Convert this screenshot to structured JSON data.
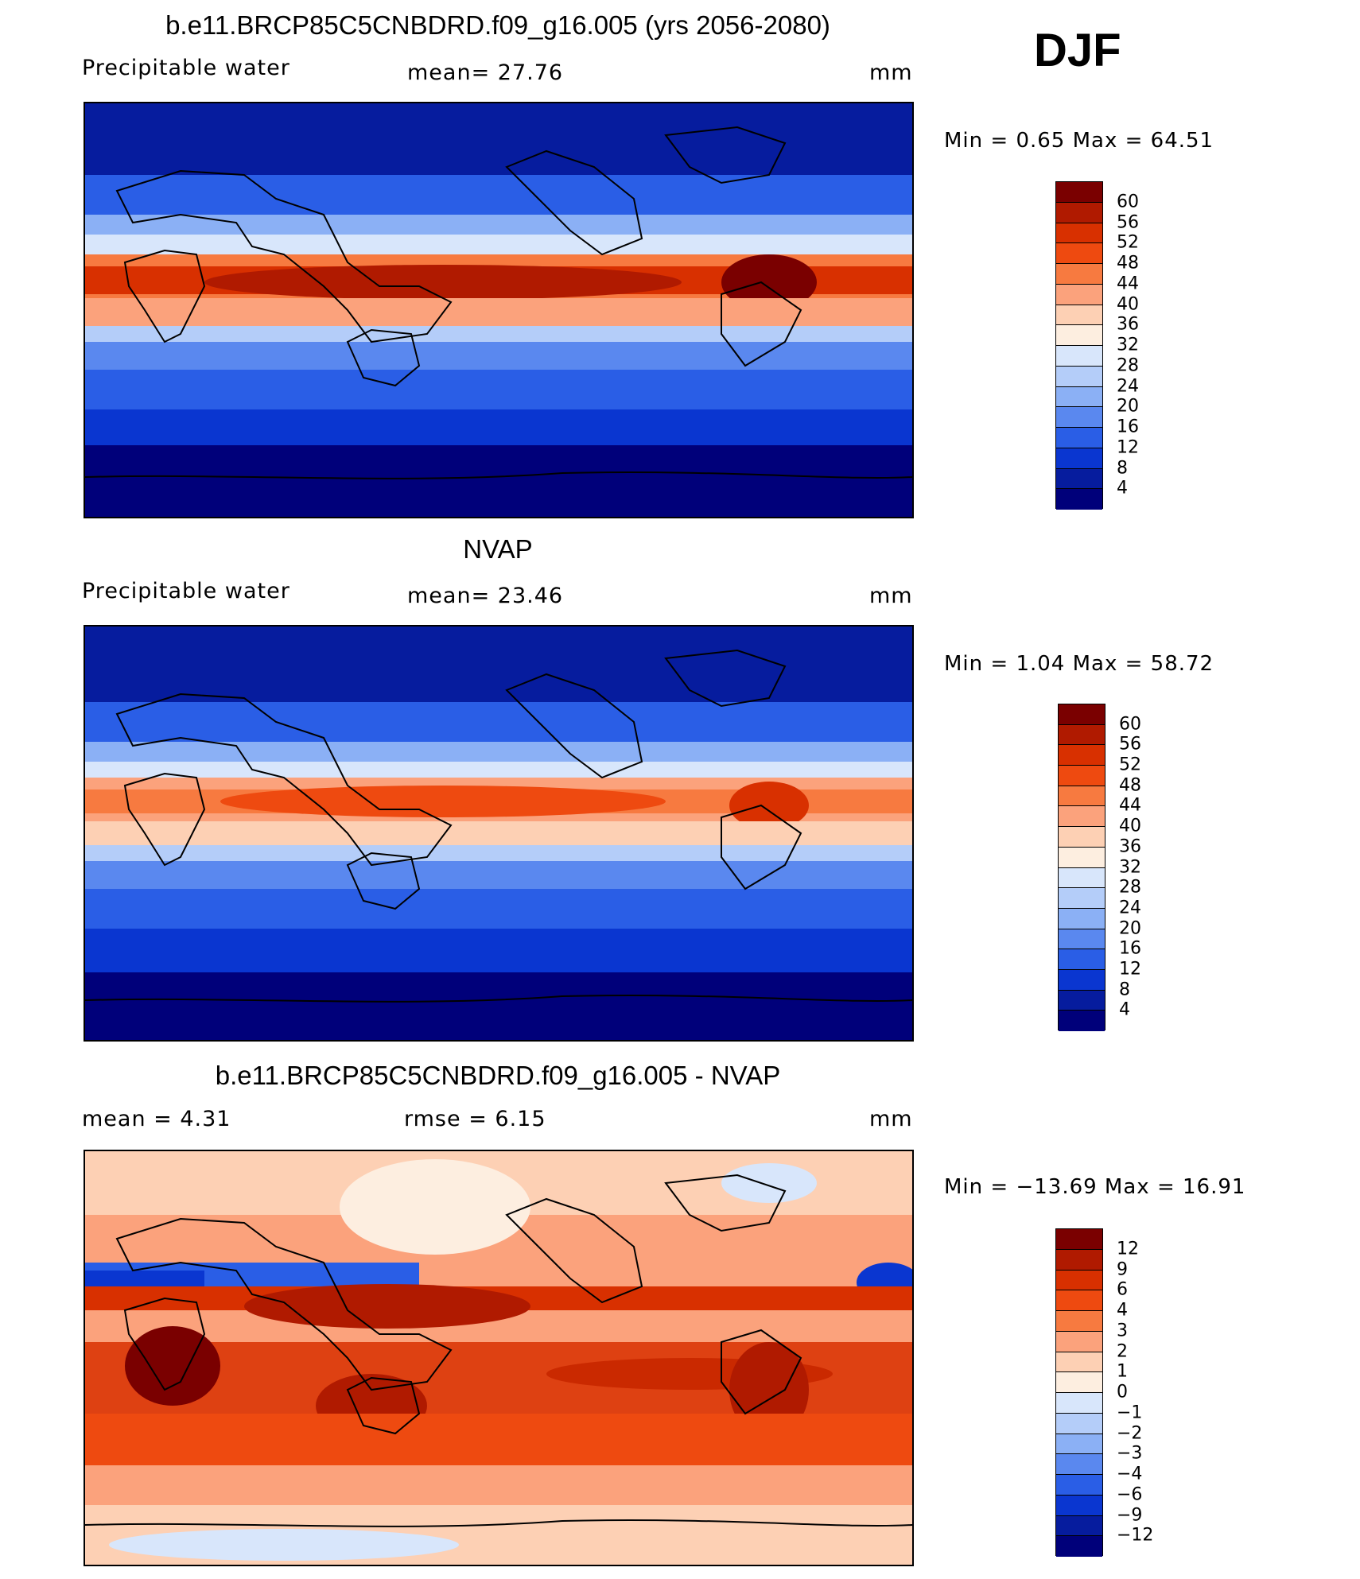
{
  "season": "DJF",
  "panels": [
    {
      "id": "model",
      "title": "b.e11.BRCP85C5CNBDRD.f09_g16.005 (yrs 2056-2080)",
      "left_label": "Precipitable  water",
      "center_label": "mean=   27.76",
      "units": "mm",
      "minmax": "Min  =     0.65  Max  =    64.51",
      "colorbar": {
        "labels": [
          "60",
          "56",
          "52",
          "48",
          "44",
          "40",
          "36",
          "32",
          "28",
          "24",
          "20",
          "16",
          "12",
          "8",
          "4"
        ],
        "colors": [
          "#7a0000",
          "#b01a00",
          "#d83000",
          "#ee4a10",
          "#f77a40",
          "#fba27c",
          "#fdd0b4",
          "#fdeee0",
          "#d8e6fb",
          "#b4cdf9",
          "#8bb0f5",
          "#5a88ef",
          "#2a5ee6",
          "#0a36d0",
          "#061c9e",
          "#00007a"
        ]
      }
    },
    {
      "id": "obs",
      "title": "NVAP",
      "left_label": "Precipitable  water",
      "center_label": "mean=   23.46",
      "units": "mm",
      "minmax": "Min  =     1.04  Max  =    58.72",
      "colorbar": {
        "labels": [
          "60",
          "56",
          "52",
          "48",
          "44",
          "40",
          "36",
          "32",
          "28",
          "24",
          "20",
          "16",
          "12",
          "8",
          "4"
        ],
        "colors": [
          "#7a0000",
          "#b01a00",
          "#d83000",
          "#ee4a10",
          "#f77a40",
          "#fba27c",
          "#fdd0b4",
          "#fdeee0",
          "#d8e6fb",
          "#b4cdf9",
          "#8bb0f5",
          "#5a88ef",
          "#2a5ee6",
          "#0a36d0",
          "#061c9e",
          "#00007a"
        ]
      }
    },
    {
      "id": "diff",
      "title": "b.e11.BRCP85C5CNBDRD.f09_g16.005 - NVAP",
      "left_label": "mean  =      4.31",
      "center_label": "rmse  =      6.15",
      "units": "mm",
      "minmax": "Min  = −13.69  Max  =    16.91",
      "colorbar": {
        "labels": [
          "12",
          "9",
          "6",
          "4",
          "3",
          "2",
          "1",
          "0",
          "−1",
          "−2",
          "−3",
          "−4",
          "−6",
          "−9",
          "−12"
        ],
        "colors": [
          "#7a0000",
          "#b01a00",
          "#d83000",
          "#ee4a10",
          "#f77a40",
          "#fba27c",
          "#fdd0b4",
          "#fdeee0",
          "#d8e6fb",
          "#b4cdf9",
          "#8bb0f5",
          "#5a88ef",
          "#2a5ee6",
          "#0a36d0",
          "#061c9e",
          "#00007a"
        ]
      }
    }
  ]
}
